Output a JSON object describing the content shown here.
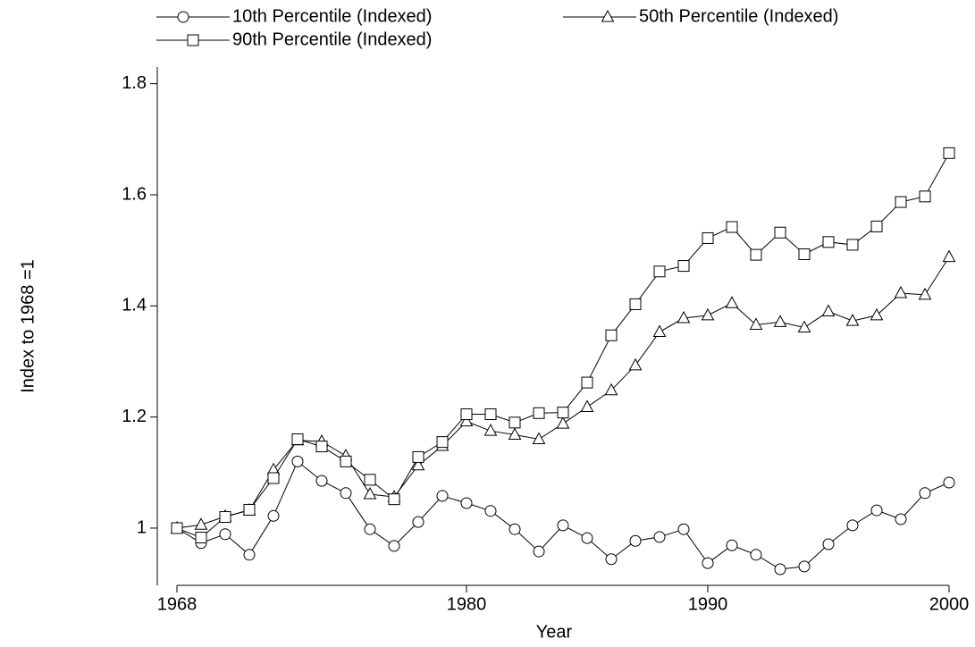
{
  "chart_data": {
    "type": "line",
    "x_label": "Year",
    "y_label": "Index to 1968 =1",
    "x": [
      1968,
      1969,
      1970,
      1971,
      1972,
      1973,
      1974,
      1975,
      1976,
      1977,
      1978,
      1979,
      1980,
      1981,
      1982,
      1983,
      1984,
      1985,
      1986,
      1987,
      1988,
      1989,
      1990,
      1991,
      1992,
      1993,
      1994,
      1995,
      1996,
      1997,
      1998,
      1999,
      2000
    ],
    "series": [
      {
        "name": "10th Percentile (Indexed)",
        "color": "#000000",
        "marker": "circle",
        "values": [
          1.0,
          0.973,
          0.989,
          0.952,
          1.022,
          1.12,
          1.085,
          1.063,
          0.998,
          0.968,
          1.011,
          1.058,
          1.045,
          1.031,
          0.998,
          0.958,
          1.005,
          0.982,
          0.944,
          0.977,
          0.984,
          0.998,
          0.937,
          0.969,
          0.952,
          0.926,
          0.931,
          0.971,
          1.005,
          1.032,
          1.016,
          1.063,
          1.082
        ]
      },
      {
        "name": "50th Percentile (Indexed)",
        "color": "#000000",
        "marker": "triangle",
        "values": [
          1.0,
          1.006,
          1.021,
          1.032,
          1.105,
          1.158,
          1.156,
          1.13,
          1.061,
          1.056,
          1.113,
          1.148,
          1.192,
          1.175,
          1.168,
          1.16,
          1.188,
          1.218,
          1.248,
          1.293,
          1.353,
          1.378,
          1.383,
          1.405,
          1.366,
          1.371,
          1.361,
          1.39,
          1.373,
          1.383,
          1.423,
          1.42,
          1.488
        ]
      },
      {
        "name": "90th Percentile (Indexed)",
        "color": "#000000",
        "marker": "square",
        "values": [
          1.0,
          0.983,
          1.02,
          1.033,
          1.09,
          1.16,
          1.147,
          1.12,
          1.087,
          1.052,
          1.128,
          1.155,
          1.205,
          1.205,
          1.19,
          1.207,
          1.208,
          1.262,
          1.347,
          1.403,
          1.462,
          1.472,
          1.522,
          1.542,
          1.492,
          1.532,
          1.493,
          1.515,
          1.51,
          1.543,
          1.587,
          1.597,
          1.675
        ]
      }
    ],
    "xlim": [
      1968,
      2000
    ],
    "xticks": [
      1968,
      1980,
      1990,
      2000
    ],
    "ylim": [
      0.897,
      1.83
    ],
    "yticks": [
      1,
      1.2,
      1.4,
      1.6,
      1.8
    ],
    "grid": false,
    "legend": "top"
  }
}
